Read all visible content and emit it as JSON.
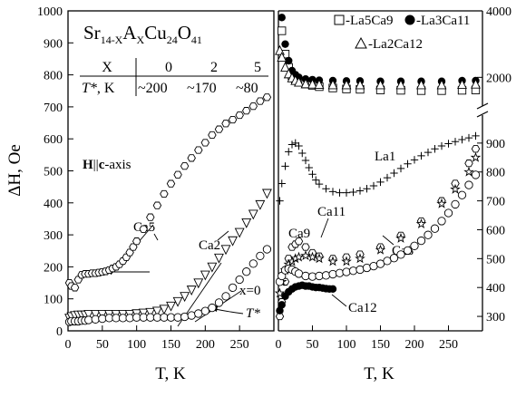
{
  "chart_data": [
    {
      "type": "scatter",
      "panel": "left",
      "title": "Sr14-XAXCu24O41",
      "title_parts": {
        "base": "Sr",
        "sub1": "14-X",
        "mid": "A",
        "sub2": "X",
        "tail": "Cu",
        "sub3": "24",
        "tail2": "O",
        "sub4": "41"
      },
      "xlabel": "T, K",
      "ylabel": "ΔH, Oe",
      "xlim": [
        0,
        300
      ],
      "ylim": [
        0,
        1000
      ],
      "xticks": [
        "0",
        "50",
        "100",
        "150",
        "200",
        "250"
      ],
      "yticks": [
        "0",
        "100",
        "200",
        "300",
        "400",
        "500",
        "600",
        "700",
        "800",
        "900",
        "1000"
      ],
      "field_label": {
        "h": "H",
        "sep": "||",
        "c": "c",
        "rest": "-axis"
      },
      "table": {
        "header": [
          "X",
          "0",
          "2",
          "5"
        ],
        "row_label": "T*, K",
        "row_label_italic": "T*",
        "row_label_rest": ", K",
        "row": [
          "~200",
          "~170",
          "~80"
        ]
      },
      "annotations": [
        "Ca5",
        "Ca2",
        "x=0",
        "T*"
      ],
      "series": [
        {
          "name": "Ca5",
          "marker": "hexagon",
          "x": [
            2,
            5,
            10,
            15,
            20,
            25,
            30,
            35,
            40,
            45,
            50,
            55,
            60,
            65,
            70,
            75,
            80,
            85,
            90,
            95,
            100,
            110,
            120,
            130,
            140,
            150,
            160,
            170,
            180,
            190,
            200,
            210,
            220,
            230,
            240,
            250,
            260,
            270,
            280,
            290
          ],
          "y": [
            150,
            140,
            135,
            160,
            175,
            178,
            178,
            180,
            180,
            182,
            184,
            186,
            190,
            195,
            200,
            208,
            218,
            230,
            245,
            262,
            280,
            318,
            355,
            392,
            428,
            460,
            488,
            515,
            540,
            565,
            588,
            612,
            630,
            648,
            660,
            674,
            688,
            702,
            718,
            730
          ]
        },
        {
          "name": "Ca2",
          "marker": "triangle-down",
          "x": [
            2,
            5,
            10,
            15,
            20,
            25,
            30,
            40,
            50,
            60,
            70,
            80,
            90,
            100,
            110,
            120,
            130,
            140,
            150,
            160,
            170,
            180,
            190,
            200,
            210,
            220,
            230,
            240,
            250,
            260,
            270,
            280,
            290
          ],
          "y": [
            40,
            45,
            48,
            50,
            50,
            50,
            52,
            52,
            52,
            52,
            52,
            52,
            52,
            54,
            56,
            58,
            62,
            68,
            78,
            92,
            108,
            128,
            150,
            175,
            200,
            228,
            255,
            282,
            308,
            338,
            365,
            395,
            430
          ]
        },
        {
          "name": "x=0",
          "marker": "circle",
          "x": [
            2,
            5,
            10,
            15,
            20,
            25,
            30,
            40,
            50,
            60,
            70,
            80,
            90,
            100,
            110,
            120,
            130,
            140,
            150,
            160,
            170,
            180,
            190,
            200,
            210,
            220,
            230,
            240,
            250,
            260,
            270,
            280,
            290
          ],
          "y": [
            28,
            30,
            30,
            30,
            32,
            32,
            34,
            36,
            38,
            40,
            40,
            40,
            40,
            42,
            42,
            42,
            42,
            42,
            42,
            42,
            44,
            48,
            54,
            62,
            72,
            88,
            108,
            135,
            160,
            185,
            210,
            234,
            255
          ]
        }
      ]
    },
    {
      "type": "scatter",
      "panel": "right",
      "xlabel": "T, K",
      "xlim": [
        0,
        300
      ],
      "xticks": [
        "0",
        "50",
        "100",
        "150",
        "200",
        "250"
      ],
      "y_upper_ticks": [
        "2000",
        "4000"
      ],
      "y_lower_ticks": [
        "300",
        "400",
        "500",
        "600",
        "700",
        "800",
        "900"
      ],
      "ylim_upper": [
        1000,
        4000
      ],
      "ylim_lower": [
        250,
        1000
      ],
      "legend": [
        "-La5Ca9",
        "-La3Ca11",
        "-La2Ca12"
      ],
      "annotations": [
        "La1",
        "Ca9",
        "Ca11",
        "Ca12",
        "Ca8"
      ],
      "series": [
        {
          "name": "La5Ca9",
          "marker": "square",
          "x": [
            5,
            10,
            15,
            20,
            25,
            30,
            40,
            50,
            60,
            80,
            100,
            120,
            150,
            180,
            210,
            240,
            270,
            290
          ],
          "y": [
            3400,
            2700,
            2300,
            2050,
            1950,
            1880,
            1800,
            1760,
            1720,
            1680,
            1650,
            1640,
            1620,
            1610,
            1600,
            1600,
            1610,
            1620
          ]
        },
        {
          "name": "La3Ca11",
          "marker": "filled-circle",
          "x": [
            5,
            10,
            15,
            20,
            25,
            30,
            40,
            50,
            60,
            80,
            100,
            120,
            150,
            180,
            210,
            240,
            270,
            290
          ],
          "y": [
            3800,
            3000,
            2500,
            2200,
            2080,
            2000,
            1950,
            1930,
            1910,
            1900,
            1890,
            1890,
            1880,
            1880,
            1880,
            1880,
            1900,
            1900
          ]
        },
        {
          "name": "La2Ca12",
          "marker": "triangle",
          "x": [
            2,
            5,
            10,
            15,
            20,
            25,
            30,
            40,
            50,
            60,
            80,
            100,
            120,
            150,
            180,
            210,
            240,
            270,
            290
          ],
          "y": [
            2800,
            2600,
            2300,
            2100,
            1980,
            1900,
            1850,
            1800,
            1790,
            1780,
            1770,
            1770,
            1770,
            1770,
            1770,
            1770,
            1770,
            1780,
            1790
          ]
        },
        {
          "name": "La1",
          "marker": "plus",
          "x": [
            2,
            5,
            10,
            15,
            20,
            25,
            30,
            35,
            40,
            45,
            50,
            55,
            60,
            70,
            80,
            90,
            100,
            110,
            120,
            130,
            140,
            150,
            160,
            170,
            180,
            190,
            200,
            210,
            220,
            230,
            240,
            250,
            260,
            270,
            280,
            290
          ],
          "y": [
            700,
            760,
            820,
            870,
            895,
            900,
            890,
            865,
            840,
            815,
            792,
            772,
            758,
            742,
            732,
            728,
            728,
            730,
            735,
            742,
            752,
            765,
            780,
            796,
            812,
            828,
            842,
            856,
            868,
            880,
            890,
            898,
            905,
            912,
            918,
            925
          ]
        },
        {
          "name": "Ca9",
          "marker": "hexagon",
          "x": [
            2,
            5,
            10,
            15,
            20,
            25,
            30,
            40,
            50,
            60,
            80,
            100,
            120,
            150,
            180,
            210,
            240,
            260,
            280,
            290
          ],
          "y": [
            300,
            350,
            420,
            500,
            540,
            550,
            560,
            540,
            520,
            508,
            500,
            505,
            515,
            540,
            580,
            630,
            700,
            760,
            830,
            880
          ]
        },
        {
          "name": "Ca11",
          "marker": "star",
          "x": [
            2,
            5,
            10,
            15,
            20,
            25,
            30,
            40,
            50,
            60,
            80,
            100,
            120,
            150,
            180,
            210,
            240,
            260,
            280,
            290
          ],
          "y": [
            380,
            420,
            460,
            480,
            490,
            500,
            505,
            510,
            505,
            500,
            490,
            490,
            500,
            530,
            570,
            620,
            690,
            740,
            800,
            850
          ]
        },
        {
          "name": "Ca12",
          "marker": "filled-circle",
          "x": [
            2,
            5,
            10,
            15,
            20,
            25,
            30,
            35,
            40,
            45,
            50,
            55,
            60,
            65,
            70,
            75,
            80
          ],
          "y": [
            320,
            340,
            370,
            385,
            395,
            402,
            405,
            408,
            405,
            405,
            402,
            400,
            400,
            398,
            396,
            395,
            395
          ]
        },
        {
          "name": "Ca8",
          "marker": "circle",
          "x": [
            2,
            5,
            10,
            15,
            20,
            25,
            30,
            40,
            50,
            60,
            70,
            80,
            90,
            100,
            110,
            120,
            130,
            140,
            150,
            160,
            170,
            180,
            190,
            200,
            210,
            220,
            230,
            240,
            250,
            260,
            270,
            280,
            290
          ],
          "y": [
            420,
            440,
            460,
            465,
            462,
            455,
            448,
            440,
            438,
            440,
            442,
            446,
            450,
            454,
            458,
            462,
            468,
            474,
            482,
            492,
            502,
            514,
            528,
            544,
            562,
            582,
            604,
            630,
            658,
            688,
            720,
            755,
            790
          ]
        }
      ]
    }
  ]
}
